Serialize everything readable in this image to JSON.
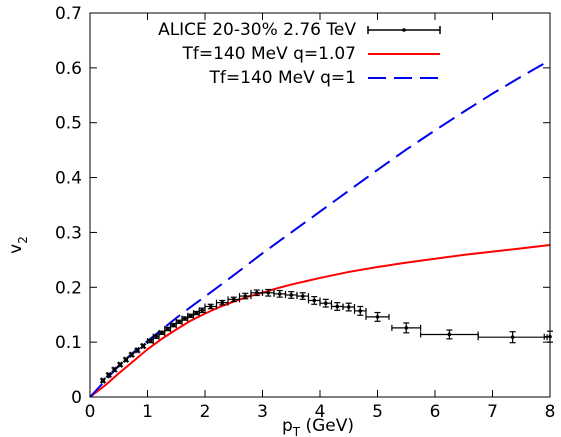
{
  "chart_data": {
    "type": "line",
    "title": "",
    "xlabel": "p_T (GeV)",
    "xlabel_main": "p",
    "xlabel_sub": "T",
    "xlabel_rest": " (GeV)",
    "ylabel": "v_2",
    "ylabel_main": "v",
    "ylabel_sub": "2",
    "xlim": [
      0,
      8
    ],
    "ylim": [
      0,
      0.7
    ],
    "xticks": [
      "0",
      "1",
      "2",
      "3",
      "4",
      "5",
      "6",
      "7",
      "8"
    ],
    "yticks": [
      "0",
      "0.1",
      "0.2",
      "0.3",
      "0.4",
      "0.5",
      "0.6",
      "0.7"
    ],
    "grid": false,
    "legend_position": "top-right",
    "series": [
      {
        "name": "ALICE 20-30% 2.76 TeV",
        "kind": "errorbar",
        "color": "#000000",
        "points": [
          {
            "x": 0.225,
            "y": 0.03,
            "xerr": 0.025,
            "yerr": 0.003
          },
          {
            "x": 0.325,
            "y": 0.04,
            "xerr": 0.025,
            "yerr": 0.003
          },
          {
            "x": 0.425,
            "y": 0.05,
            "xerr": 0.025,
            "yerr": 0.003
          },
          {
            "x": 0.525,
            "y": 0.059,
            "xerr": 0.025,
            "yerr": 0.003
          },
          {
            "x": 0.625,
            "y": 0.068,
            "xerr": 0.025,
            "yerr": 0.003
          },
          {
            "x": 0.725,
            "y": 0.077,
            "xerr": 0.025,
            "yerr": 0.003
          },
          {
            "x": 0.825,
            "y": 0.085,
            "xerr": 0.025,
            "yerr": 0.003
          },
          {
            "x": 0.925,
            "y": 0.093,
            "xerr": 0.025,
            "yerr": 0.003
          },
          {
            "x": 1.05,
            "y": 0.102,
            "xerr": 0.05,
            "yerr": 0.003
          },
          {
            "x": 1.15,
            "y": 0.11,
            "xerr": 0.05,
            "yerr": 0.003
          },
          {
            "x": 1.25,
            "y": 0.117,
            "xerr": 0.05,
            "yerr": 0.003
          },
          {
            "x": 1.35,
            "y": 0.124,
            "xerr": 0.05,
            "yerr": 0.003
          },
          {
            "x": 1.45,
            "y": 0.131,
            "xerr": 0.05,
            "yerr": 0.003
          },
          {
            "x": 1.55,
            "y": 0.137,
            "xerr": 0.05,
            "yerr": 0.003
          },
          {
            "x": 1.65,
            "y": 0.143,
            "xerr": 0.05,
            "yerr": 0.003
          },
          {
            "x": 1.75,
            "y": 0.148,
            "xerr": 0.05,
            "yerr": 0.003
          },
          {
            "x": 1.85,
            "y": 0.153,
            "xerr": 0.05,
            "yerr": 0.003
          },
          {
            "x": 1.95,
            "y": 0.158,
            "xerr": 0.05,
            "yerr": 0.004
          },
          {
            "x": 2.1,
            "y": 0.165,
            "xerr": 0.1,
            "yerr": 0.004
          },
          {
            "x": 2.3,
            "y": 0.172,
            "xerr": 0.1,
            "yerr": 0.004
          },
          {
            "x": 2.5,
            "y": 0.178,
            "xerr": 0.1,
            "yerr": 0.004
          },
          {
            "x": 2.7,
            "y": 0.184,
            "xerr": 0.1,
            "yerr": 0.005
          },
          {
            "x": 2.9,
            "y": 0.19,
            "xerr": 0.1,
            "yerr": 0.005
          },
          {
            "x": 3.1,
            "y": 0.19,
            "xerr": 0.1,
            "yerr": 0.006
          },
          {
            "x": 3.3,
            "y": 0.188,
            "xerr": 0.1,
            "yerr": 0.006
          },
          {
            "x": 3.5,
            "y": 0.186,
            "xerr": 0.1,
            "yerr": 0.006
          },
          {
            "x": 3.7,
            "y": 0.184,
            "xerr": 0.1,
            "yerr": 0.006
          },
          {
            "x": 3.9,
            "y": 0.176,
            "xerr": 0.1,
            "yerr": 0.007
          },
          {
            "x": 4.1,
            "y": 0.171,
            "xerr": 0.1,
            "yerr": 0.007
          },
          {
            "x": 4.3,
            "y": 0.165,
            "xerr": 0.1,
            "yerr": 0.007
          },
          {
            "x": 4.5,
            "y": 0.164,
            "xerr": 0.1,
            "yerr": 0.007
          },
          {
            "x": 4.7,
            "y": 0.157,
            "xerr": 0.1,
            "yerr": 0.008
          },
          {
            "x": 5.0,
            "y": 0.146,
            "xerr": 0.2,
            "yerr": 0.008
          },
          {
            "x": 5.5,
            "y": 0.126,
            "xerr": 0.25,
            "yerr": 0.009
          },
          {
            "x": 6.25,
            "y": 0.114,
            "xerr": 0.5,
            "yerr": 0.008
          },
          {
            "x": 7.35,
            "y": 0.109,
            "xerr": 0.6,
            "yerr": 0.01
          },
          {
            "x": 8.0,
            "y": 0.11,
            "xerr": 0.1,
            "yerr": 0.01
          }
        ]
      },
      {
        "name": "Tf=140 MeV q=1.07",
        "kind": "line",
        "color": "#ff0000",
        "dash": "solid",
        "x": [
          0.0,
          0.25,
          0.5,
          0.75,
          1.0,
          1.25,
          1.5,
          1.75,
          2.0,
          2.25,
          2.5,
          2.75,
          3.0,
          3.25,
          3.5,
          3.75,
          4.0,
          4.5,
          5.0,
          5.5,
          6.0,
          6.5,
          7.0,
          7.5,
          8.0
        ],
        "y": [
          0.0,
          0.02,
          0.043,
          0.065,
          0.087,
          0.106,
          0.123,
          0.139,
          0.152,
          0.164,
          0.174,
          0.183,
          0.19,
          0.198,
          0.205,
          0.211,
          0.217,
          0.228,
          0.237,
          0.245,
          0.252,
          0.259,
          0.265,
          0.271,
          0.277
        ]
      },
      {
        "name": "Tf=140 MeV q=1",
        "kind": "line",
        "color": "#0000ee",
        "dash": "dashed",
        "x": [
          0.0,
          0.25,
          0.5,
          0.75,
          1.0,
          1.25,
          1.5,
          1.75,
          2.0,
          2.5,
          3.0,
          3.5,
          4.0,
          4.5,
          5.0,
          5.5,
          6.0,
          6.5,
          7.0,
          7.5,
          8.0
        ],
        "y": [
          0.0,
          0.028,
          0.057,
          0.081,
          0.102,
          0.123,
          0.144,
          0.164,
          0.183,
          0.222,
          0.262,
          0.3,
          0.338,
          0.376,
          0.414,
          0.451,
          0.486,
          0.52,
          0.553,
          0.584,
          0.614
        ]
      }
    ]
  }
}
